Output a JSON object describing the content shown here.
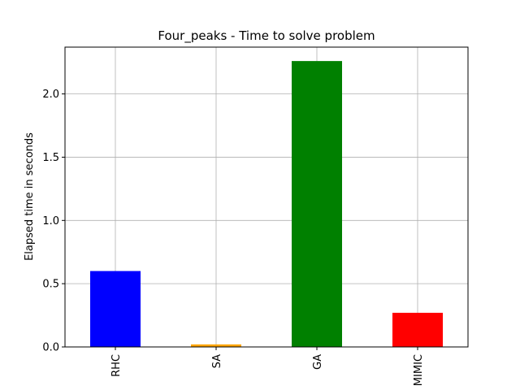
{
  "chart_data": {
    "type": "bar",
    "title": "Four_peaks - Time to solve problem",
    "xlabel": "",
    "ylabel": "Elapsed time in seconds",
    "categories": [
      "RHC",
      "SA",
      "GA",
      "MIMIC"
    ],
    "values": [
      0.6,
      0.02,
      2.26,
      0.27
    ],
    "colors": [
      "#0000ff",
      "#ffa500",
      "#008000",
      "#ff0000"
    ],
    "ylim": [
      0,
      2.37
    ],
    "yticks": [
      0.0,
      0.5,
      1.0,
      1.5,
      2.0
    ],
    "ytick_labels": [
      "0.0",
      "0.5",
      "1.0",
      "1.5",
      "2.0"
    ],
    "grid": true,
    "legend": "none"
  }
}
